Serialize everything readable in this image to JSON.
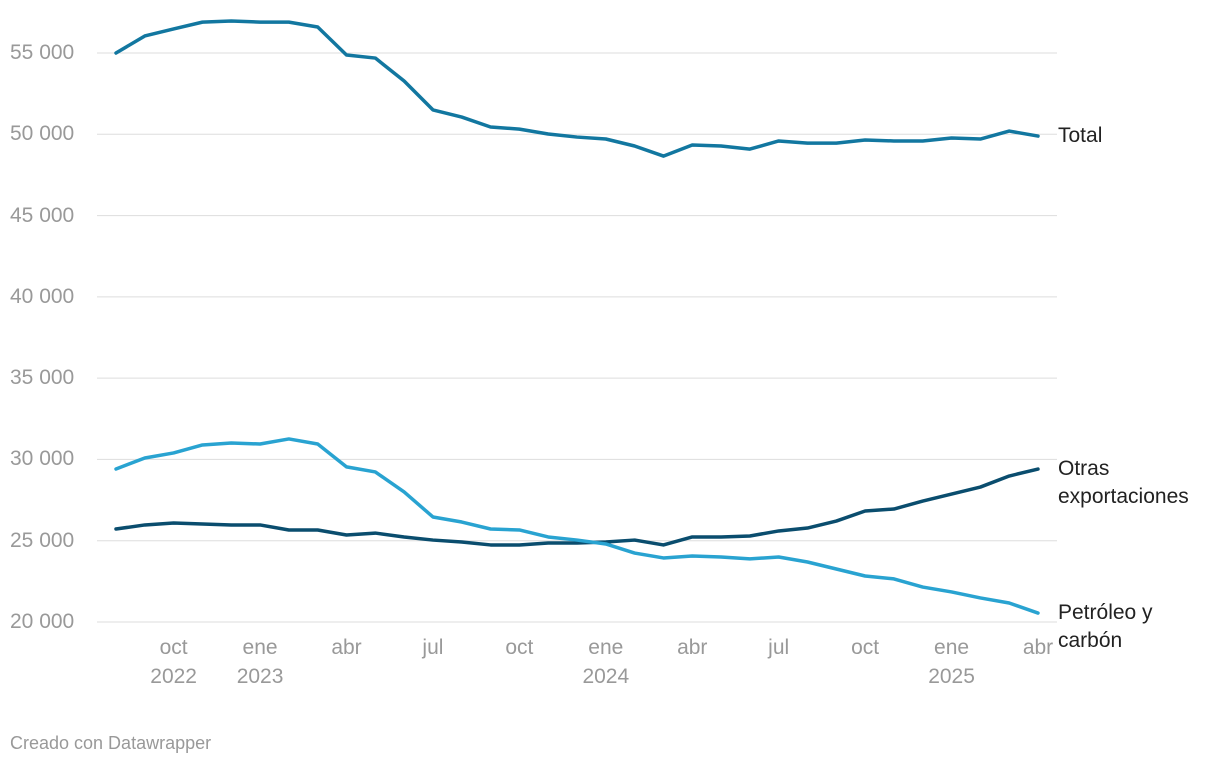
{
  "chart_data": {
    "type": "line",
    "categories": [
      null,
      null,
      "oct 2022",
      null,
      null,
      "ene 2023",
      null,
      null,
      "abr",
      null,
      null,
      "jul",
      null,
      null,
      "oct",
      null,
      null,
      "ene 2024",
      null,
      null,
      "abr",
      null,
      null,
      "jul",
      null,
      null,
      "oct",
      null,
      null,
      "ene 2025",
      null,
      null,
      "abr"
    ],
    "series": [
      {
        "name": "Total",
        "color": "#1277a0",
        "values": [
          55000,
          56050,
          56480,
          56900,
          56970,
          56900,
          56900,
          56600,
          54880,
          54690,
          53280,
          51500,
          51060,
          50450,
          50320,
          50020,
          49830,
          49710,
          49280,
          48660,
          49340,
          49280,
          49090,
          49590,
          49460,
          49460,
          49650,
          49590,
          49590,
          49770,
          49710,
          50200,
          49890
        ]
      },
      {
        "name": "Otras exportaciones",
        "color": "#0a4d6e",
        "values": [
          25720,
          25970,
          26090,
          26030,
          25970,
          25970,
          25660,
          25660,
          25350,
          25470,
          25230,
          25040,
          24920,
          24740,
          24740,
          24860,
          24860,
          24920,
          25040,
          24740,
          25230,
          25230,
          25290,
          25600,
          25780,
          26210,
          26830,
          26950,
          27440,
          27870,
          28300,
          28980,
          29410
        ]
      },
      {
        "name": "Petróleo y carbón",
        "color": "#29a3d1",
        "values": [
          29410,
          30090,
          30400,
          30890,
          31010,
          30950,
          31260,
          30950,
          29540,
          29230,
          28000,
          26460,
          26150,
          25720,
          25660,
          25230,
          25040,
          24800,
          24240,
          23940,
          24060,
          24000,
          23880,
          24000,
          23690,
          23260,
          22830,
          22650,
          22150,
          21850,
          21480,
          21170,
          20550
        ]
      }
    ],
    "ylim": [
      20000,
      57000
    ],
    "yticks": [
      {
        "value": 20000,
        "label": "20 000"
      },
      {
        "value": 25000,
        "label": "25 000"
      },
      {
        "value": 30000,
        "label": "30 000"
      },
      {
        "value": 35000,
        "label": "35 000"
      },
      {
        "value": 40000,
        "label": "40 000"
      },
      {
        "value": 45000,
        "label": "45 000"
      },
      {
        "value": 50000,
        "label": "50 000"
      },
      {
        "value": 55000,
        "label": "55 000"
      }
    ],
    "grid": true,
    "footer": "Creado con Datawrapper"
  }
}
